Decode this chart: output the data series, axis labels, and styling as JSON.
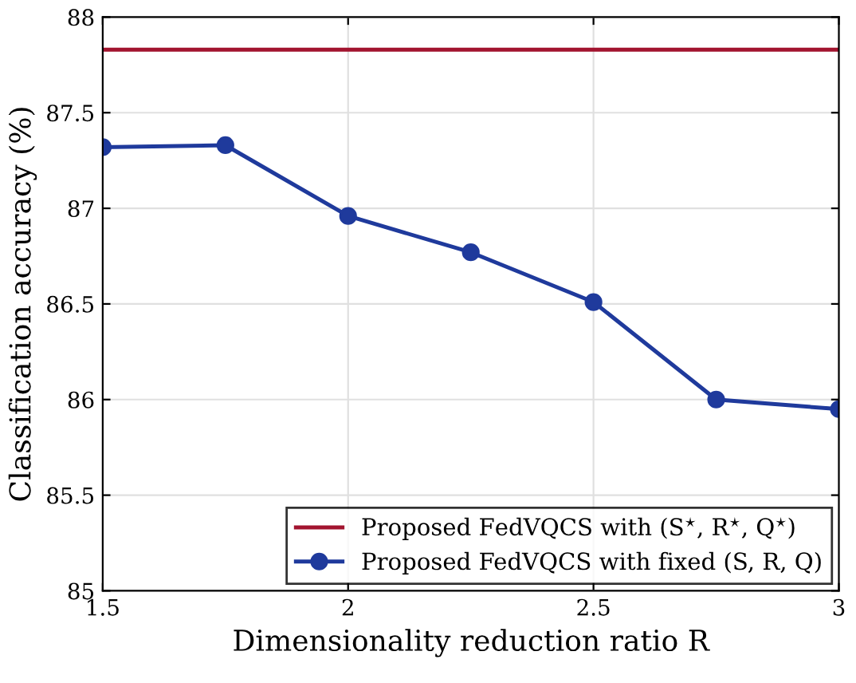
{
  "chart_data": {
    "type": "line",
    "xlabel": "Dimensionality reduction ratio R",
    "ylabel": "Classification accuracy (%)",
    "x": [
      1.5,
      1.75,
      2,
      2.25,
      2.5,
      2.75,
      3
    ],
    "series": [
      {
        "name": "Proposed FedVQCS with (S$^{⋆}$, R$^{⋆}$, Q$^{⋆}$)",
        "color": "#a2142f",
        "x": [
          1.5,
          3
        ],
        "values": [
          87.83,
          87.83
        ],
        "marker": "none"
      },
      {
        "name": "Proposed FedVQCS with fixed (S, R, Q)",
        "color": "#1f3a9c",
        "values": [
          87.32,
          87.33,
          86.96,
          86.77,
          86.51,
          86.0,
          85.95
        ],
        "marker": "circle"
      }
    ],
    "xlim": [
      1.5,
      3
    ],
    "ylim": [
      85,
      88
    ],
    "xticks": [
      1.5,
      2,
      2.5,
      3
    ],
    "yticks": [
      85,
      85.5,
      86,
      86.5,
      87,
      87.5,
      88
    ],
    "grid": true,
    "legend": "bottom right",
    "line_style": "solid"
  }
}
